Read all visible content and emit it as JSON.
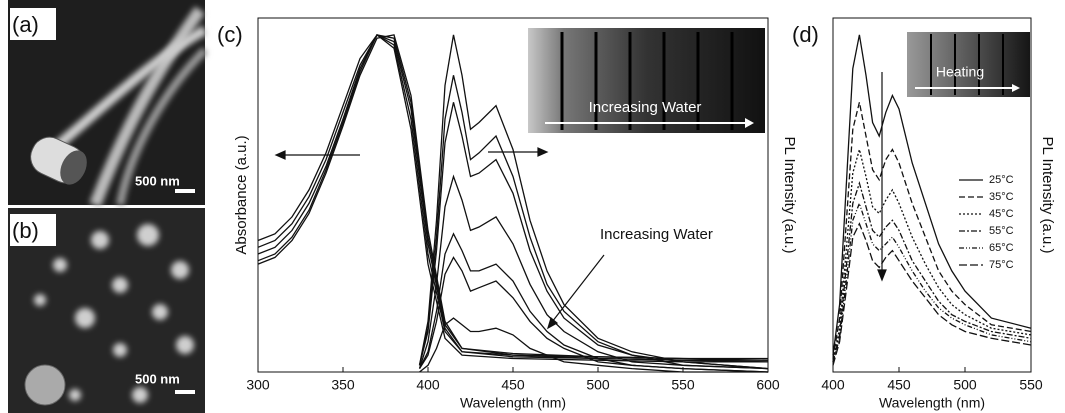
{
  "images": [
    {
      "panel_label": "(a)",
      "scale_bar": "500 nm"
    },
    {
      "panel_label": "(b)",
      "scale_bar": "500 nm"
    }
  ],
  "chart_data": [
    {
      "type": "line",
      "panel_label": "(c)",
      "xlabel": "Wavelength (nm)",
      "ylabel": "Absorbance (a.u.)",
      "y2label": "PL Intensity (a.u.)",
      "annotation": "Increasing Water",
      "inset_label": "Increasing Water",
      "color": "#111111",
      "xlim": [
        300,
        600
      ],
      "xticks": [
        300,
        350,
        400,
        450,
        500,
        550,
        600
      ],
      "ylim": [
        0,
        1.05
      ],
      "series": [
        {
          "x": [
            300,
            310,
            320,
            330,
            340,
            350,
            360,
            370,
            380,
            390,
            400,
            410,
            420,
            450,
            500,
            550,
            600
          ],
          "values": [
            0.39,
            0.41,
            0.46,
            0.54,
            0.65,
            0.79,
            0.93,
            1.0,
            0.96,
            0.72,
            0.32,
            0.1,
            0.05,
            0.04,
            0.035,
            0.03,
            0.03
          ]
        },
        {
          "x": [
            300,
            310,
            320,
            330,
            340,
            350,
            360,
            370,
            380,
            390,
            400,
            410,
            420,
            450,
            500,
            550,
            600
          ],
          "values": [
            0.37,
            0.39,
            0.44,
            0.52,
            0.63,
            0.77,
            0.91,
            1.0,
            0.97,
            0.75,
            0.35,
            0.12,
            0.06,
            0.045,
            0.04,
            0.035,
            0.03
          ]
        },
        {
          "x": [
            300,
            310,
            320,
            330,
            340,
            350,
            360,
            370,
            380,
            390,
            400,
            410,
            420,
            450,
            500,
            550,
            600
          ],
          "values": [
            0.35,
            0.37,
            0.42,
            0.5,
            0.61,
            0.75,
            0.9,
            1.0,
            0.98,
            0.78,
            0.38,
            0.13,
            0.06,
            0.05,
            0.04,
            0.035,
            0.035
          ]
        },
        {
          "x": [
            300,
            310,
            320,
            330,
            340,
            350,
            360,
            370,
            380,
            390,
            400,
            410,
            420,
            450,
            500,
            550,
            600
          ],
          "values": [
            0.33,
            0.35,
            0.4,
            0.48,
            0.6,
            0.74,
            0.89,
            1.0,
            0.99,
            0.8,
            0.4,
            0.14,
            0.07,
            0.05,
            0.045,
            0.04,
            0.035
          ]
        },
        {
          "x": [
            300,
            310,
            320,
            330,
            340,
            350,
            360,
            370,
            380,
            390,
            400,
            410,
            420,
            450,
            500,
            550,
            600
          ],
          "values": [
            0.32,
            0.34,
            0.39,
            0.47,
            0.59,
            0.73,
            0.88,
            0.99,
            1.0,
            0.82,
            0.42,
            0.15,
            0.07,
            0.055,
            0.045,
            0.04,
            0.04
          ]
        },
        {
          "x": [
            395,
            400,
            405,
            410,
            415,
            420,
            425,
            430,
            440,
            450,
            460,
            470,
            480,
            500,
            520,
            550,
            600
          ],
          "values": [
            0.02,
            0.15,
            0.45,
            0.85,
            1.0,
            0.88,
            0.72,
            0.74,
            0.79,
            0.66,
            0.45,
            0.3,
            0.2,
            0.1,
            0.06,
            0.03,
            0.01
          ]
        },
        {
          "x": [
            395,
            400,
            405,
            410,
            415,
            420,
            425,
            430,
            440,
            450,
            460,
            470,
            480,
            500,
            520,
            550,
            600
          ],
          "values": [
            0.02,
            0.13,
            0.4,
            0.75,
            0.88,
            0.77,
            0.63,
            0.65,
            0.7,
            0.58,
            0.4,
            0.26,
            0.18,
            0.09,
            0.05,
            0.03,
            0.01
          ]
        },
        {
          "x": [
            395,
            400,
            405,
            410,
            415,
            420,
            425,
            430,
            440,
            450,
            460,
            470,
            480,
            500,
            520,
            550,
            600
          ],
          "values": [
            0.02,
            0.12,
            0.36,
            0.68,
            0.8,
            0.7,
            0.58,
            0.59,
            0.63,
            0.53,
            0.36,
            0.24,
            0.16,
            0.08,
            0.05,
            0.02,
            0.01
          ]
        },
        {
          "x": [
            395,
            400,
            405,
            410,
            415,
            420,
            425,
            430,
            440,
            450,
            460,
            470,
            480,
            500,
            520,
            550,
            600
          ],
          "values": [
            0.01,
            0.09,
            0.26,
            0.49,
            0.58,
            0.51,
            0.42,
            0.43,
            0.46,
            0.38,
            0.26,
            0.17,
            0.12,
            0.06,
            0.03,
            0.02,
            0.01
          ]
        },
        {
          "x": [
            395,
            400,
            405,
            410,
            415,
            420,
            425,
            430,
            440,
            450,
            460,
            470,
            480,
            500,
            520,
            550,
            600
          ],
          "values": [
            0.01,
            0.06,
            0.18,
            0.35,
            0.41,
            0.36,
            0.3,
            0.3,
            0.32,
            0.27,
            0.18,
            0.12,
            0.08,
            0.04,
            0.02,
            0.01,
            0.0
          ]
        },
        {
          "x": [
            395,
            400,
            405,
            410,
            415,
            420,
            425,
            430,
            440,
            450,
            460,
            470,
            480,
            500,
            520,
            550,
            600
          ],
          "values": [
            0.01,
            0.05,
            0.15,
            0.29,
            0.34,
            0.3,
            0.24,
            0.25,
            0.27,
            0.22,
            0.15,
            0.1,
            0.07,
            0.03,
            0.02,
            0.01,
            0.0
          ]
        },
        {
          "x": [
            395,
            400,
            405,
            410,
            415,
            420,
            425,
            430,
            440,
            450,
            460,
            470,
            480,
            500,
            520,
            550,
            600
          ],
          "values": [
            0.0,
            0.02,
            0.07,
            0.14,
            0.16,
            0.14,
            0.12,
            0.12,
            0.13,
            0.11,
            0.07,
            0.05,
            0.03,
            0.02,
            0.01,
            0.0,
            0.0
          ]
        }
      ]
    },
    {
      "type": "line",
      "panel_label": "(d)",
      "xlabel": "Wavelength (nm)",
      "y2label": "PL Intensity (a.u.)",
      "inset_label": "Heating",
      "color": "#111111",
      "xlim": [
        400,
        550
      ],
      "xticks": [
        400,
        450,
        500,
        550
      ],
      "ylim": [
        0,
        1.05
      ],
      "legend": "right",
      "series": [
        {
          "name": "25°C",
          "dash": "none",
          "x": [
            400,
            405,
            410,
            415,
            420,
            425,
            430,
            435,
            440,
            445,
            450,
            460,
            470,
            480,
            490,
            500,
            520,
            550
          ],
          "values": [
            0.05,
            0.2,
            0.55,
            0.9,
            1.0,
            0.88,
            0.74,
            0.7,
            0.77,
            0.82,
            0.78,
            0.62,
            0.5,
            0.38,
            0.3,
            0.24,
            0.16,
            0.13
          ]
        },
        {
          "name": "35°C",
          "dash": "6,3",
          "x": [
            400,
            405,
            410,
            415,
            420,
            425,
            430,
            435,
            440,
            445,
            450,
            460,
            470,
            480,
            490,
            500,
            520,
            550
          ],
          "values": [
            0.04,
            0.16,
            0.44,
            0.72,
            0.8,
            0.7,
            0.6,
            0.57,
            0.63,
            0.66,
            0.62,
            0.5,
            0.4,
            0.3,
            0.24,
            0.2,
            0.14,
            0.12
          ]
        },
        {
          "name": "45°C",
          "dash": "2,2",
          "x": [
            400,
            405,
            410,
            415,
            420,
            425,
            430,
            435,
            440,
            445,
            450,
            460,
            470,
            480,
            490,
            500,
            520,
            550
          ],
          "values": [
            0.03,
            0.13,
            0.36,
            0.59,
            0.66,
            0.58,
            0.49,
            0.47,
            0.51,
            0.54,
            0.5,
            0.4,
            0.32,
            0.25,
            0.2,
            0.17,
            0.13,
            0.11
          ]
        },
        {
          "name": "55°C",
          "dash": "6,2,2,2",
          "x": [
            400,
            405,
            410,
            415,
            420,
            425,
            430,
            435,
            440,
            445,
            450,
            460,
            470,
            480,
            490,
            500,
            520,
            550
          ],
          "values": [
            0.03,
            0.11,
            0.31,
            0.5,
            0.56,
            0.49,
            0.42,
            0.4,
            0.43,
            0.45,
            0.42,
            0.33,
            0.27,
            0.21,
            0.17,
            0.15,
            0.12,
            0.1
          ]
        },
        {
          "name": "65°C",
          "dash": "5,2,1,2,1,2",
          "x": [
            400,
            405,
            410,
            415,
            420,
            425,
            430,
            435,
            440,
            445,
            450,
            460,
            470,
            480,
            490,
            500,
            520,
            550
          ],
          "values": [
            0.03,
            0.1,
            0.27,
            0.45,
            0.5,
            0.44,
            0.38,
            0.36,
            0.38,
            0.4,
            0.37,
            0.3,
            0.24,
            0.19,
            0.16,
            0.14,
            0.11,
            0.09
          ]
        },
        {
          "name": "75°C",
          "dash": "8,3",
          "x": [
            400,
            405,
            410,
            415,
            420,
            425,
            430,
            435,
            440,
            445,
            450,
            460,
            470,
            480,
            490,
            500,
            520,
            550
          ],
          "values": [
            0.02,
            0.09,
            0.24,
            0.4,
            0.44,
            0.39,
            0.33,
            0.31,
            0.34,
            0.36,
            0.33,
            0.27,
            0.22,
            0.17,
            0.14,
            0.12,
            0.1,
            0.08
          ]
        }
      ]
    }
  ]
}
